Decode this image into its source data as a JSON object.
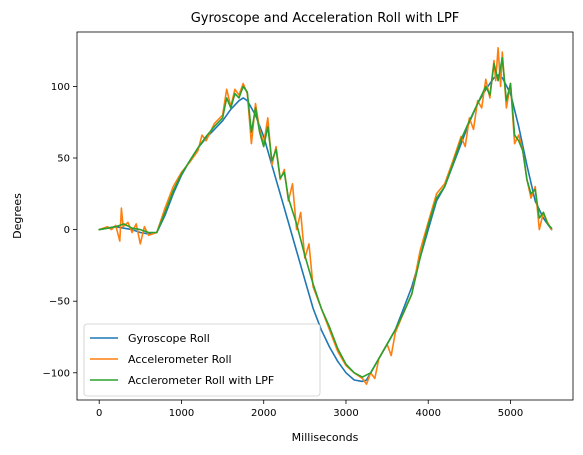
{
  "chart_data": {
    "type": "line",
    "title": "Gyroscope and Acceleration Roll with LPF",
    "xlabel": "Milliseconds",
    "ylabel": "Degrees",
    "xlim": [
      -270,
      5760
    ],
    "ylim": [
      -119,
      138
    ],
    "xticks": [
      0,
      1000,
      2000,
      3000,
      4000,
      5000
    ],
    "yticks": [
      -100,
      -50,
      0,
      50,
      100
    ],
    "legend_position": "lower-left",
    "grid": false,
    "series": [
      {
        "name": "Gyroscope Roll",
        "color": "#1f77b4",
        "x": [
          0,
          100,
          200,
          300,
          400,
          500,
          600,
          700,
          800,
          900,
          1000,
          1100,
          1200,
          1300,
          1400,
          1500,
          1600,
          1700,
          1750,
          1800,
          1900,
          2000,
          2100,
          2200,
          2300,
          2400,
          2500,
          2600,
          2700,
          2800,
          2900,
          3000,
          3100,
          3200,
          3250,
          3300,
          3400,
          3500,
          3600,
          3700,
          3800,
          3900,
          4000,
          4100,
          4200,
          4300,
          4400,
          4500,
          4600,
          4700,
          4800,
          4850,
          4900,
          5000,
          5100,
          5200,
          5300,
          5400,
          5500
        ],
        "y": [
          0,
          1,
          2,
          1,
          0,
          -2,
          -3,
          -2,
          10,
          25,
          38,
          48,
          57,
          64,
          70,
          76,
          84,
          90,
          92,
          90,
          80,
          65,
          45,
          25,
          5,
          -15,
          -35,
          -55,
          -70,
          -82,
          -92,
          -100,
          -105,
          -106,
          -105,
          -100,
          -90,
          -80,
          -70,
          -55,
          -40,
          -20,
          0,
          20,
          30,
          45,
          60,
          75,
          88,
          98,
          106,
          108,
          106,
          95,
          72,
          45,
          20,
          8,
          0
        ]
      },
      {
        "name": "Accelerometer Roll",
        "color": "#ff7f0e",
        "x": [
          0,
          100,
          150,
          200,
          250,
          270,
          290,
          350,
          400,
          450,
          500,
          550,
          600,
          700,
          800,
          900,
          1000,
          1100,
          1200,
          1250,
          1300,
          1400,
          1500,
          1550,
          1600,
          1650,
          1700,
          1750,
          1800,
          1850,
          1900,
          1950,
          2000,
          2050,
          2100,
          2150,
          2200,
          2250,
          2300,
          2350,
          2400,
          2450,
          2500,
          2550,
          2600,
          2700,
          2800,
          2900,
          3000,
          3100,
          3200,
          3250,
          3300,
          3350,
          3400,
          3500,
          3550,
          3600,
          3700,
          3800,
          3900,
          4000,
          4100,
          4200,
          4300,
          4400,
          4450,
          4500,
          4550,
          4600,
          4650,
          4700,
          4750,
          4800,
          4820,
          4850,
          4880,
          4900,
          4950,
          5000,
          5050,
          5100,
          5150,
          5200,
          5250,
          5300,
          5350,
          5400,
          5450,
          5500
        ],
        "y": [
          0,
          2,
          0,
          3,
          -8,
          15,
          2,
          5,
          -2,
          4,
          -10,
          2,
          -4,
          -2,
          15,
          30,
          40,
          47,
          55,
          66,
          62,
          74,
          80,
          98,
          86,
          98,
          94,
          102,
          95,
          60,
          88,
          70,
          60,
          78,
          45,
          58,
          35,
          42,
          20,
          32,
          0,
          12,
          -20,
          -10,
          -40,
          -55,
          -70,
          -85,
          -95,
          -100,
          -104,
          -108,
          -100,
          -104,
          -90,
          -80,
          -88,
          -72,
          -58,
          -45,
          -15,
          5,
          25,
          32,
          48,
          65,
          58,
          78,
          70,
          90,
          85,
          105,
          92,
          118,
          104,
          127,
          100,
          124,
          85,
          102,
          60,
          66,
          55,
          35,
          22,
          30,
          0,
          12,
          5,
          0
        ]
      },
      {
        "name": "Acclerometer Roll with LPF",
        "color": "#2ca02c",
        "x": [
          0,
          100,
          200,
          300,
          400,
          500,
          600,
          700,
          800,
          900,
          1000,
          1100,
          1200,
          1300,
          1400,
          1500,
          1550,
          1600,
          1650,
          1700,
          1750,
          1800,
          1850,
          1900,
          1950,
          2000,
          2050,
          2100,
          2150,
          2200,
          2250,
          2300,
          2400,
          2500,
          2600,
          2700,
          2800,
          2900,
          3000,
          3100,
          3200,
          3300,
          3400,
          3500,
          3600,
          3700,
          3800,
          3900,
          4000,
          4100,
          4200,
          4300,
          4400,
          4500,
          4600,
          4700,
          4750,
          4800,
          4850,
          4900,
          4950,
          5000,
          5050,
          5100,
          5150,
          5200,
          5250,
          5300,
          5350,
          5400,
          5450,
          5500
        ],
        "y": [
          0,
          1,
          2,
          4,
          1,
          0,
          -2,
          -2,
          12,
          27,
          39,
          48,
          57,
          65,
          72,
          78,
          92,
          85,
          95,
          92,
          100,
          96,
          68,
          85,
          68,
          58,
          72,
          48,
          56,
          36,
          40,
          22,
          4,
          -18,
          -38,
          -55,
          -68,
          -83,
          -94,
          -100,
          -103,
          -100,
          -90,
          -80,
          -70,
          -58,
          -45,
          -20,
          3,
          22,
          30,
          46,
          63,
          76,
          88,
          100,
          94,
          116,
          104,
          120,
          90,
          102,
          66,
          62,
          55,
          35,
          25,
          28,
          8,
          12,
          4,
          1
        ]
      }
    ]
  }
}
